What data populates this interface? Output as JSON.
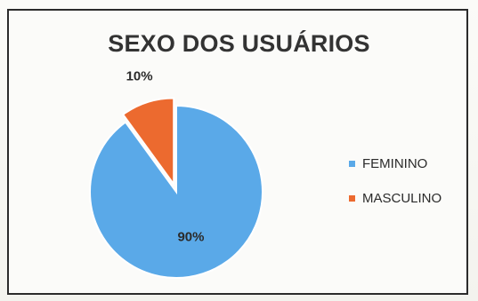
{
  "chart_data": {
    "type": "pie",
    "title": "SEXO DOS USUÁRIOS",
    "categories": [
      "FEMININO",
      "MASCULINO"
    ],
    "values": [
      90,
      10
    ],
    "labels": [
      "90%",
      "10%"
    ],
    "colors": [
      "#5aa9e8",
      "#ec6a2f"
    ],
    "legend_position": "right",
    "exploded_slice": "MASCULINO"
  }
}
